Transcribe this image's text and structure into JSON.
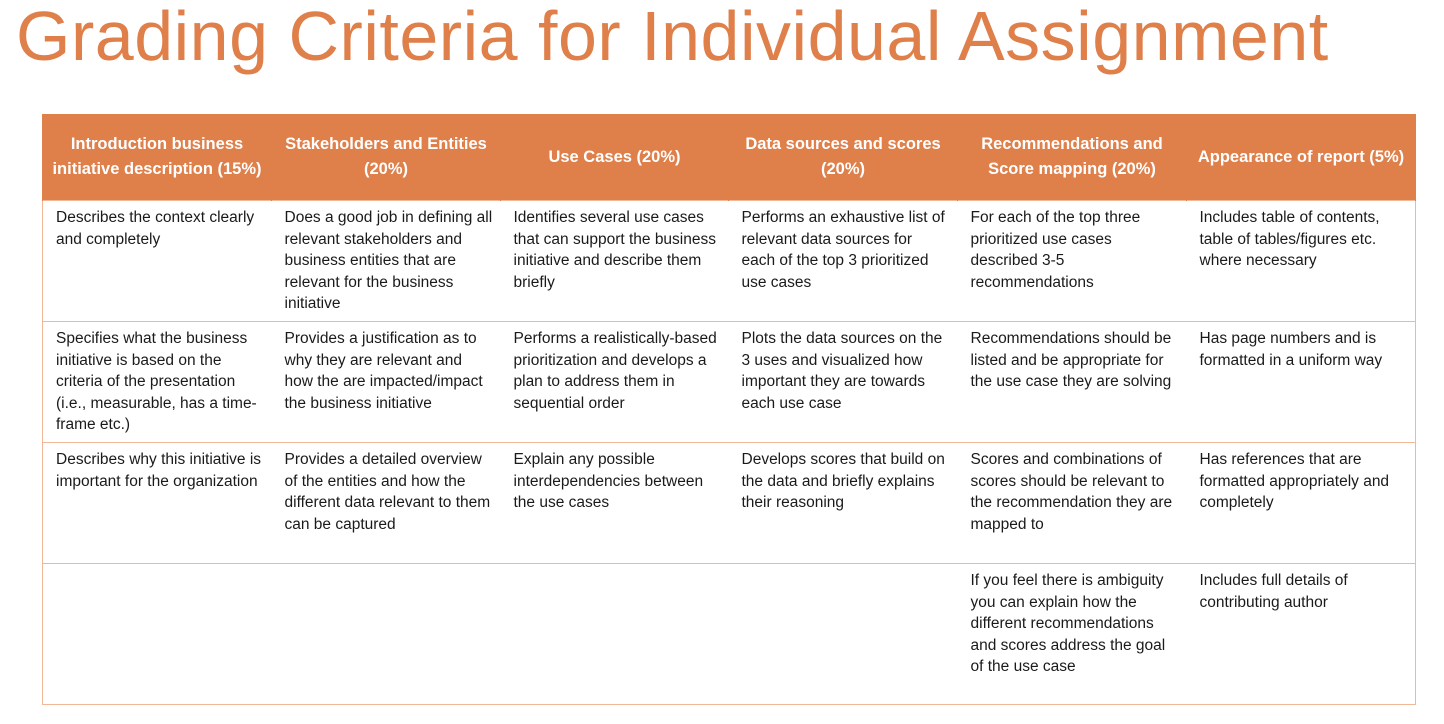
{
  "title": "Grading Criteria for Individual Assignment",
  "columns": [
    "Introduction business initiative description (15%)",
    "Stakeholders and Entities (20%)",
    "Use Cases (20%)",
    "Data sources and scores (20%)",
    "Recommendations and Score mapping (20%)",
    "Appearance of report (5%)"
  ],
  "rows": [
    [
      "Describes the context clearly and completely",
      "Does a good job in defining all relevant stakeholders and business entities that are relevant for the business initiative",
      "Identifies several use cases that can support the business initiative and describe them briefly",
      "Performs an exhaustive list of relevant data sources for each of the top 3 prioritized use cases",
      "For each of the top three prioritized use cases described 3-5 recommendations",
      "Includes table of contents, table of tables/figures etc. where necessary"
    ],
    [
      "Specifies what the business initiative is based on the criteria of the presentation (i.e., measurable, has a time-frame etc.)",
      "Provides a justification as to why they are relevant and how the are impacted/impact the business initiative",
      "Performs a realistically-based prioritization and develops a plan to address them in sequential order",
      "Plots the data sources on the 3 uses and visualized how important they are towards each use case",
      "Recommendations should be listed and be appropriate for the use case they are solving",
      "Has page numbers and is formatted in a uniform way"
    ],
    [
      "Describes why this initiative is important for the organization",
      "Provides a detailed overview of the entities and how the different data relevant to them can be captured",
      "Explain any possible interdependencies between the use cases",
      "Develops scores that build on the data and briefly explains their reasoning",
      "Scores and combinations of scores should be relevant to the recommendation they are mapped to",
      "Has references that are formatted appropriately and completely"
    ],
    [
      "",
      "",
      "",
      "",
      "If you feel there is ambiguity you can explain how the different recommendations and scores address the goal of the use case",
      "Includes full details of contributing author"
    ]
  ],
  "colors": {
    "accent": "#df7f4a",
    "header_text": "#ffffff",
    "border": "#f1b898",
    "body_text": "#1a1a1a"
  }
}
